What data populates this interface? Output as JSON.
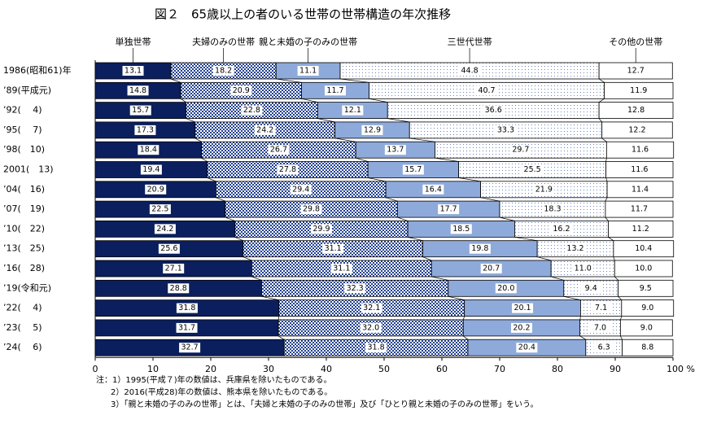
{
  "chart_data": {
    "type": "stacked-bar-horizontal",
    "title": "図２　65歳以上の者のいる世帯の世帯構造の年次推移",
    "categories": [
      "1986(昭和61)年",
      "’89(平成元)",
      "’92(　 4)",
      "’95(　 7)",
      "’98(　10)",
      "2001(　13)",
      "’04(　16)",
      "’07(　19)",
      "’10(　22)",
      "’13(　25)",
      "’16(　28)",
      "’19(令和元)",
      "’22(　 4)",
      "’23(　 5)",
      "’24(　 6)"
    ],
    "series": [
      {
        "name": "単独世帯",
        "color": "#0b1f5e",
        "pattern": "solid",
        "values": [
          13.1,
          14.8,
          15.7,
          17.3,
          18.4,
          19.4,
          20.9,
          22.5,
          24.2,
          25.6,
          27.1,
          28.8,
          31.8,
          31.7,
          32.7
        ],
        "value_labels": [
          "13.1",
          "14.8",
          "15.7",
          "17.3",
          "18.4",
          "19.4",
          "20.9",
          "22.5",
          "24.2",
          "25.6",
          "27.1",
          "28.8",
          "31.8",
          "31.7",
          "32.7"
        ]
      },
      {
        "name": "夫婦のみの世帯",
        "color": "#1f3f8f",
        "pattern": "check",
        "values": [
          18.2,
          20.9,
          22.8,
          24.2,
          26.7,
          27.8,
          29.4,
          29.8,
          29.9,
          31.1,
          31.1,
          32.3,
          32.1,
          32.0,
          31.8
        ],
        "value_labels": [
          "18.2",
          "20.9",
          "22.8",
          "24.2",
          "26.7",
          "27.8",
          "29.4",
          "29.8",
          "29.9",
          "31.1",
          "31.1",
          "32.3",
          "32.1",
          "32.0",
          "31.8"
        ]
      },
      {
        "name": "親と未婚の子のみの世帯",
        "color": "#8eaadb",
        "pattern": "solid",
        "values": [
          11.1,
          11.7,
          12.1,
          12.9,
          13.7,
          15.7,
          16.4,
          17.7,
          18.5,
          19.8,
          20.7,
          20.0,
          20.1,
          20.2,
          20.4
        ],
        "value_labels": [
          "11.1",
          "11.7",
          "12.1",
          "12.9",
          "13.7",
          "15.7",
          "16.4",
          "17.7",
          "18.5",
          "19.8",
          "20.7",
          "20.0",
          "20.1",
          "20.2",
          "20.4"
        ]
      },
      {
        "name": "三世代世帯",
        "color": "#6a84b8",
        "pattern": "dots",
        "values": [
          44.8,
          40.7,
          36.6,
          33.3,
          29.7,
          25.5,
          21.9,
          18.3,
          16.2,
          13.2,
          11.0,
          9.4,
          7.1,
          7.0,
          6.3
        ],
        "value_labels": [
          "44.8",
          "40.7",
          "36.6",
          "33.3",
          "29.7",
          "25.5",
          "21.9",
          "18.3",
          "16.2",
          "13.2",
          "11.0",
          "9.4",
          "7.1",
          "7.0",
          "6.3"
        ]
      },
      {
        "name": "その他の世帯",
        "color": "#ffffff",
        "pattern": "solid",
        "values": [
          12.7,
          11.9,
          12.8,
          12.2,
          11.6,
          11.6,
          11.4,
          11.7,
          11.2,
          10.4,
          10.0,
          9.5,
          9.0,
          9.0,
          8.8
        ],
        "value_labels": [
          "12.7",
          "11.9",
          "12.8",
          "12.2",
          "11.6",
          "11.6",
          "11.4",
          "11.7",
          "11.2",
          "10.4",
          "10.0",
          "9.5",
          "9.0",
          "9.0",
          "8.8"
        ]
      }
    ],
    "xlim": [
      0,
      100
    ],
    "xticks": [
      0,
      10,
      20,
      30,
      40,
      50,
      60,
      70,
      80,
      90,
      {
        "value": 100,
        "label": "100 %"
      }
    ],
    "notes": [
      "注：1）1995(平成７)年の数値は、兵庫県を除いたものである。",
      "2）2016(平成28)年の数値は、熊本県を除いたものである。",
      "3）「親と未婚の子のみの世帯」とは、「夫婦と未婚の子のみの世帯」及び「ひとり親と未婚の子のみの世帯」をいう。"
    ]
  }
}
